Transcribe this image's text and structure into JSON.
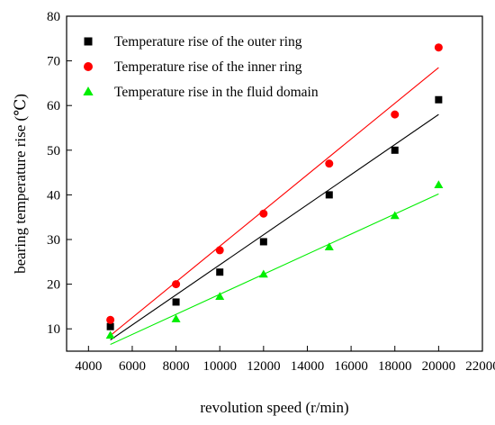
{
  "chart_data": {
    "type": "scatter",
    "xlabel": "revolution speed (r/min)",
    "ylabel": "bearing temperature rise (℃)",
    "xlim": [
      3000,
      22000
    ],
    "ylim": [
      5,
      80
    ],
    "xticks": [
      4000,
      6000,
      8000,
      10000,
      12000,
      14000,
      16000,
      18000,
      20000,
      22000
    ],
    "yticks": [
      10,
      20,
      30,
      40,
      50,
      60,
      70,
      80
    ],
    "grid": false,
    "legend_position": "top-left",
    "series": [
      {
        "name": "Temperature rise of the outer ring",
        "marker": "square",
        "color": "#000000",
        "x": [
          5000,
          8000,
          10000,
          12000,
          15000,
          18000,
          20000
        ],
        "y": [
          10.5,
          16,
          22.7,
          29.5,
          40,
          50,
          61.3
        ],
        "fit": {
          "from": 5000,
          "to": 20000,
          "y_start": 7.5,
          "y_end": 58
        }
      },
      {
        "name": "Temperature rise of the inner ring",
        "marker": "circle",
        "color": "#ff0000",
        "x": [
          5000,
          8000,
          10000,
          12000,
          15000,
          18000,
          20000
        ],
        "y": [
          12,
          20,
          27.6,
          35.8,
          47,
          58,
          73
        ],
        "fit": {
          "from": 5000,
          "to": 20000,
          "y_start": 8.5,
          "y_end": 68.5
        }
      },
      {
        "name": "Temperature rise in the fluid domain",
        "marker": "triangle",
        "color": "#00ee00",
        "x": [
          5000,
          8000,
          10000,
          12000,
          15000,
          18000,
          20000
        ],
        "y": [
          8.5,
          12.2,
          17.2,
          22.2,
          28.3,
          35.3,
          42.2
        ],
        "fit": {
          "from": 5000,
          "to": 20000,
          "y_start": 6.5,
          "y_end": 40.2
        }
      }
    ]
  }
}
